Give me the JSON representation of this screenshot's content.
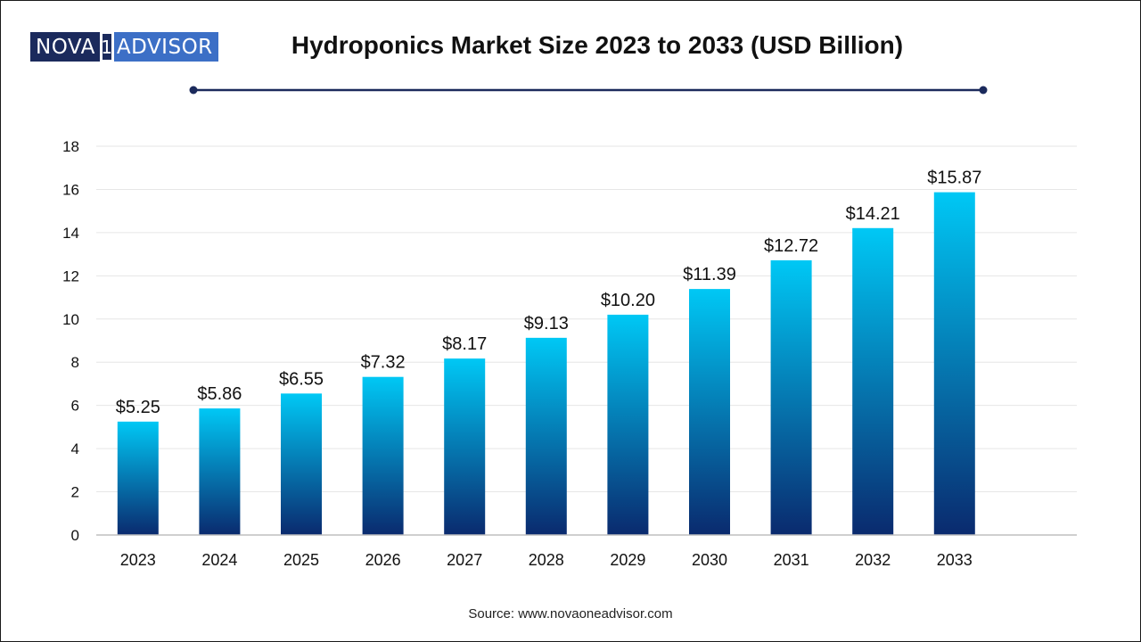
{
  "brand": {
    "logo_left": "NOVA",
    "logo_digit": "1",
    "logo_right": "ADVISOR"
  },
  "header": {
    "title": "Hydroponics Market Size 2023 to 2033 (USD Billion)"
  },
  "footer": {
    "source": "Source: www.novaoneadvisor.com"
  },
  "colors": {
    "bar_top": "#00c8f5",
    "bar_bottom": "#0a2a6e",
    "rule": "#1b2a5c",
    "gridline": "#e6e6e6",
    "axis": "#bfbfbf"
  },
  "chart_data": {
    "type": "bar",
    "title": "Hydroponics Market Size 2023 to 2033 (USD Billion)",
    "categories": [
      "2023",
      "2024",
      "2025",
      "2026",
      "2027",
      "2028",
      "2029",
      "2030",
      "2031",
      "2032",
      "2033"
    ],
    "values": [
      5.25,
      5.86,
      6.55,
      7.32,
      8.17,
      9.13,
      10.2,
      11.39,
      12.72,
      14.21,
      15.87
    ],
    "data_labels": [
      "$5.25",
      "$5.86",
      "$6.55",
      "$7.32",
      "$8.17",
      "$9.13",
      "$10.20",
      "$11.39",
      "$12.72",
      "$14.21",
      "$15.87"
    ],
    "xlabel": "",
    "ylabel": "",
    "ylim": [
      0,
      18
    ],
    "yticks": [
      0,
      2,
      4,
      6,
      8,
      10,
      12,
      14,
      16,
      18
    ],
    "grid": true,
    "legend": "none"
  }
}
